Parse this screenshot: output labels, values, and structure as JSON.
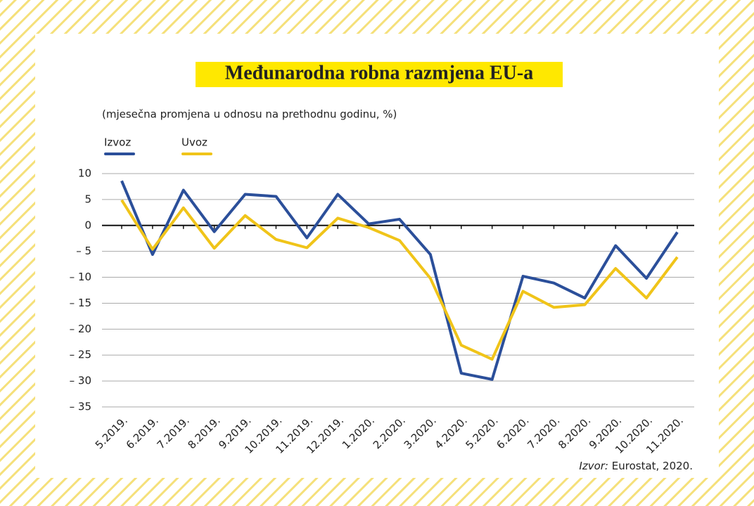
{
  "chart_data": {
    "type": "line",
    "title": "Međunarodna robna razmjena EU-a",
    "subtitle": "(mjesečna promjena u odnosu na prethodnu godinu, %)",
    "source_label": "Izvor:",
    "source": "Eurostat, 2020.",
    "categories": [
      "5.2019.",
      "6.2019.",
      "7.2019.",
      "8.2019.",
      "9.2019.",
      "10.2019.",
      "11.2019.",
      "12.2019.",
      "1.2020.",
      "2.2020.",
      "3.2020.",
      "4.2020.",
      "5.2020.",
      "6.2020.",
      "7.2020.",
      "8.2020.",
      "9.2020.",
      "10.2020.",
      "11.2020."
    ],
    "series": [
      {
        "name": "Izvoz",
        "color": "#2b4f9a",
        "values": [
          8.6,
          -5.6,
          6.8,
          -1.2,
          6.0,
          5.6,
          -2.4,
          6.0,
          0.3,
          1.2,
          -5.6,
          -28.5,
          -29.7,
          -9.8,
          -11.1,
          -14.0,
          -3.9,
          -10.2,
          -1.3
        ]
      },
      {
        "name": "Uvoz",
        "color": "#f0c419",
        "values": [
          4.9,
          -4.6,
          3.4,
          -4.4,
          1.9,
          -2.7,
          -4.3,
          1.4,
          -0.4,
          -2.9,
          -10.2,
          -23.1,
          -25.8,
          -12.7,
          -15.8,
          -15.3,
          -8.3,
          -14.0,
          -6.1
        ]
      }
    ],
    "ylim": [
      -35,
      10
    ],
    "yticks": [
      10,
      5,
      0,
      {
        "value": -5,
        "label": "– 5"
      },
      {
        "value": -10,
        "label": "– 10"
      },
      {
        "value": -15,
        "label": "– 15"
      },
      {
        "value": -20,
        "label": "– 20"
      },
      {
        "value": -25,
        "label": "– 25"
      },
      {
        "value": -30,
        "label": "– 30"
      },
      {
        "value": -35,
        "label": "– 35"
      }
    ],
    "grid": true
  }
}
